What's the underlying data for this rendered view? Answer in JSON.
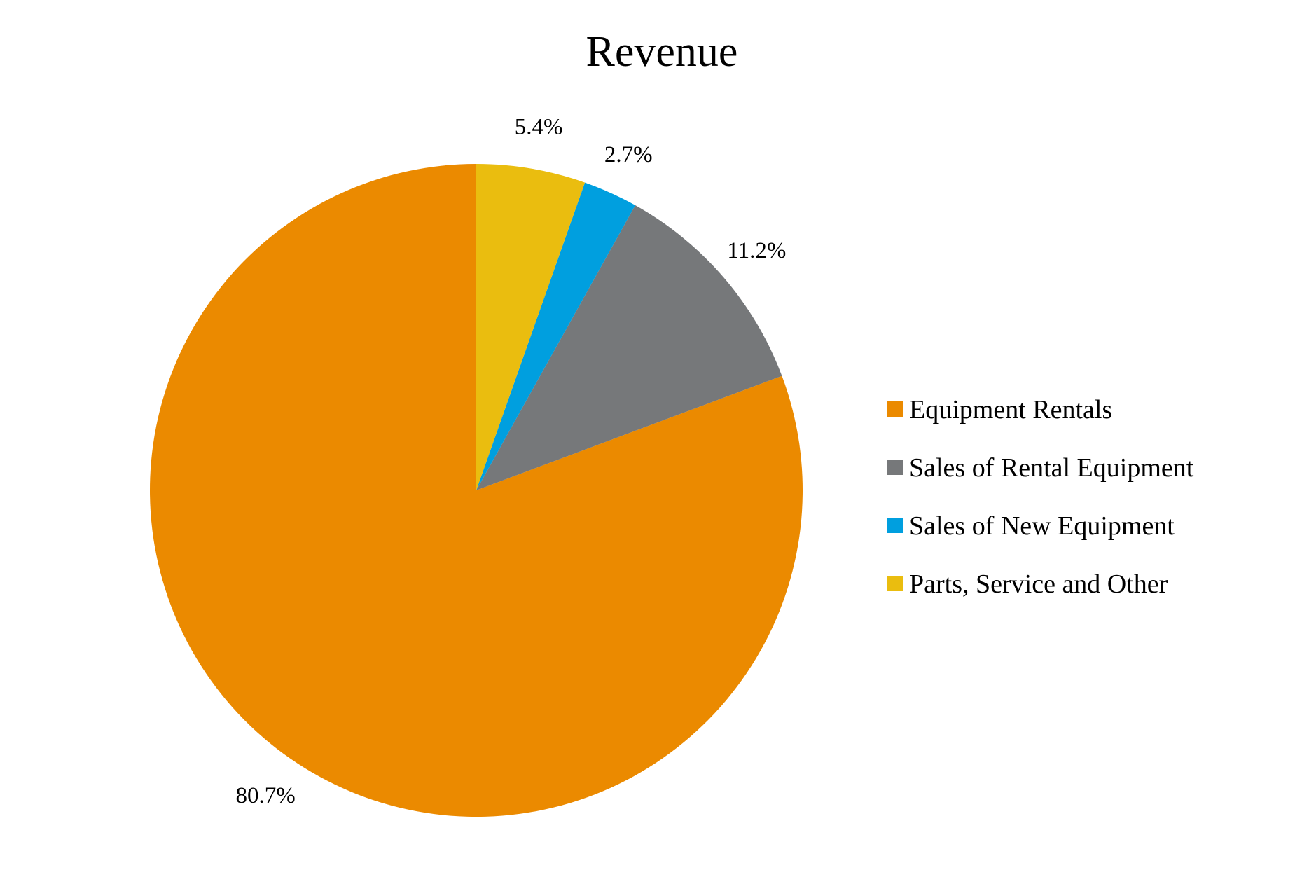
{
  "chart_data": {
    "type": "pie",
    "title": "Revenue",
    "start_angle_deg": 90,
    "direction": "clockwise",
    "slices": [
      {
        "name": "Equipment Rentals",
        "value": 80.7,
        "label": "80.7%",
        "color": "#EB8A00"
      },
      {
        "name": "Sales of Rental Equipment",
        "value": 11.2,
        "label": "11.2%",
        "color": "#76787A"
      },
      {
        "name": "Sales of New Equipment",
        "value": 2.7,
        "label": "2.7%",
        "color": "#009FDF"
      },
      {
        "name": "Parts, Service and Other",
        "value": 5.4,
        "label": "5.4%",
        "color": "#EABD0F"
      }
    ],
    "legend_position": "right"
  }
}
